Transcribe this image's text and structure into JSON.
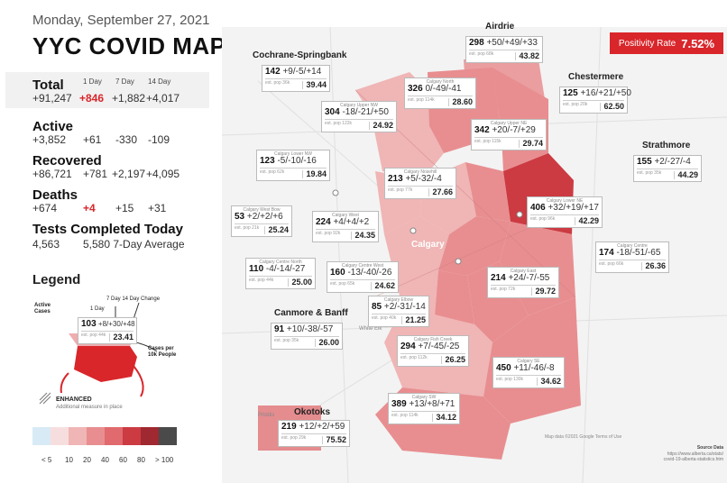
{
  "date": "Monday, September 27, 2021",
  "title": "YYC COVID MAP",
  "columns": [
    "1 Day",
    "7 Day",
    "14 Day"
  ],
  "total": {
    "label": "Total",
    "value": "+91,247",
    "d1": "+846",
    "d7": "+1,882",
    "d14": "+4,017"
  },
  "active": {
    "label": "Active",
    "value": "+3,852",
    "d1": "+61",
    "d7": "-330",
    "d14": "-109"
  },
  "recovered": {
    "label": "Recovered",
    "value": "+86,721",
    "d1": "+781",
    "d7": "+2,197",
    "d14": "+4,095"
  },
  "deaths": {
    "label": "Deaths",
    "value": "+674",
    "d1": "+4",
    "d7": "+15",
    "d14": "+31"
  },
  "tests": {
    "label": "Tests Completed Today",
    "value": "4,563",
    "avg": "5,580 7-Day Average"
  },
  "legend": {
    "title": "Legend",
    "active_cases": "Active Cases",
    "one_day": "1 Day",
    "seven_fourteen": "7 Day 14 Day Change",
    "sample_active": "103",
    "sample_change": "+8/+30/+48",
    "sample_pop": "est. pop 44k",
    "sample_rate": "23.41",
    "cases_per": "Cases per 10k People",
    "enhanced": "ENHANCED",
    "enhanced_sub": "Additional measure in place",
    "scale_labels": [
      "< 5",
      "10",
      "20",
      "40",
      "60",
      "80",
      "> 100"
    ],
    "scale_colors": [
      "#d8eaf5",
      "#f7dede",
      "#f0b5b5",
      "#e88e90",
      "#e06a6e",
      "#cc3a42",
      "#4a4a4a"
    ]
  },
  "positivity": {
    "label": "Positivity Rate",
    "value": "7.52%"
  },
  "source": {
    "l1": "Source Data",
    "l2": "https://www.alberta.ca/stats/",
    "l3": "covid-19-alberta-statistics.htm"
  },
  "map_labels": {
    "calgary": "Calgary",
    "white_elk": "White Elk",
    "priddis": "Priddis",
    "map_data": "Map data ©2021 Google   Terms of Use"
  },
  "regions": [
    {
      "id": "airdrie",
      "big": "Airdrie",
      "name": "",
      "active": "298",
      "change": "+50/+49/+33",
      "pop": "est. pop 68k",
      "rate": "43.82"
    },
    {
      "id": "cochrane",
      "big": "Cochrane-Springbank",
      "name": "",
      "active": "142",
      "change": "+9/-5/+14",
      "pop": "est. pop 36k",
      "rate": "39.44"
    },
    {
      "id": "north",
      "big": "",
      "name": "Calgary North",
      "active": "326",
      "change": "0/-49/-41",
      "pop": "est. pop 114k",
      "rate": "28.60"
    },
    {
      "id": "chestermere",
      "big": "Chestermere",
      "name": "",
      "active": "125",
      "change": "+16/+21/+50",
      "pop": "est. pop 20k",
      "rate": "62.50"
    },
    {
      "id": "uppernw",
      "big": "",
      "name": "Calgary Upper NW",
      "active": "304",
      "change": "-18/-21/+50",
      "pop": "est. pop 122k",
      "rate": "24.92"
    },
    {
      "id": "upperne",
      "big": "",
      "name": "Calgary Upper NE",
      "active": "342",
      "change": "+20/-7/+29",
      "pop": "est. pop 115k",
      "rate": "29.74"
    },
    {
      "id": "lowernw",
      "big": "",
      "name": "Calgary Lower NW",
      "active": "123",
      "change": "-5/-10/-16",
      "pop": "est. pop 62k",
      "rate": "19.84"
    },
    {
      "id": "strathmore",
      "big": "Strathmore",
      "name": "",
      "active": "155",
      "change": "+2/-27/-4",
      "pop": "est. pop 35k",
      "rate": "44.29"
    },
    {
      "id": "nosehill",
      "big": "",
      "name": "Calgary Nosehill",
      "active": "213",
      "change": "+5/-32/-4",
      "pop": "est. pop 77k",
      "rate": "27.66"
    },
    {
      "id": "westbow",
      "big": "",
      "name": "Calgary West Bow",
      "active": "53",
      "change": "+2/+2/+6",
      "pop": "est. pop 21k",
      "rate": "25.24"
    },
    {
      "id": "west",
      "big": "",
      "name": "Calgary West",
      "active": "224",
      "change": "+4/+4/+2",
      "pop": "est. pop 92k",
      "rate": "24.35"
    },
    {
      "id": "lowerne",
      "big": "",
      "name": "Calgary Lower NE",
      "active": "406",
      "change": "+32/+19/+17",
      "pop": "est. pop 96k",
      "rate": "42.29"
    },
    {
      "id": "centrenorth",
      "big": "",
      "name": "Calgary Centre North",
      "active": "110",
      "change": "-4/-14/-27",
      "pop": "est. pop 44k",
      "rate": "25.00"
    },
    {
      "id": "centrewest",
      "big": "",
      "name": "Calgary Centre West",
      "active": "160",
      "change": "-13/-40/-26",
      "pop": "est. pop 65k",
      "rate": "24.62"
    },
    {
      "id": "centre",
      "big": "",
      "name": "Calgary Centre",
      "active": "174",
      "change": "-18/-51/-65",
      "pop": "est. pop 66k",
      "rate": "26.36"
    },
    {
      "id": "east",
      "big": "",
      "name": "Calgary East",
      "active": "214",
      "change": "+24/-7/-55",
      "pop": "est. pop 72k",
      "rate": "29.72"
    },
    {
      "id": "elbow",
      "big": "",
      "name": "Calgary Elbow",
      "active": "85",
      "change": "+2/-31/-14",
      "pop": "est. pop 40k",
      "rate": "21.25"
    },
    {
      "id": "canmore",
      "big": "Canmore & Banff",
      "name": "",
      "active": "91",
      "change": "+10/-38/-57",
      "pop": "est. pop 35k",
      "rate": "26.00"
    },
    {
      "id": "fishcreek",
      "big": "",
      "name": "Calgary Fish Creek",
      "active": "294",
      "change": "+7/-45/-25",
      "pop": "est. pop 112k",
      "rate": "26.25"
    },
    {
      "id": "se",
      "big": "",
      "name": "Calgary SE",
      "active": "450",
      "change": "+11/-46/-8",
      "pop": "est. pop 130k",
      "rate": "34.62"
    },
    {
      "id": "sw",
      "big": "",
      "name": "Calgary SW",
      "active": "389",
      "change": "+13/+8/+71",
      "pop": "est. pop 114k",
      "rate": "34.12"
    },
    {
      "id": "okotoks",
      "big": "Okotoks",
      "name": "",
      "active": "219",
      "change": "+12/+2/+59",
      "pop": "est. pop 29k",
      "rate": "75.52"
    }
  ]
}
